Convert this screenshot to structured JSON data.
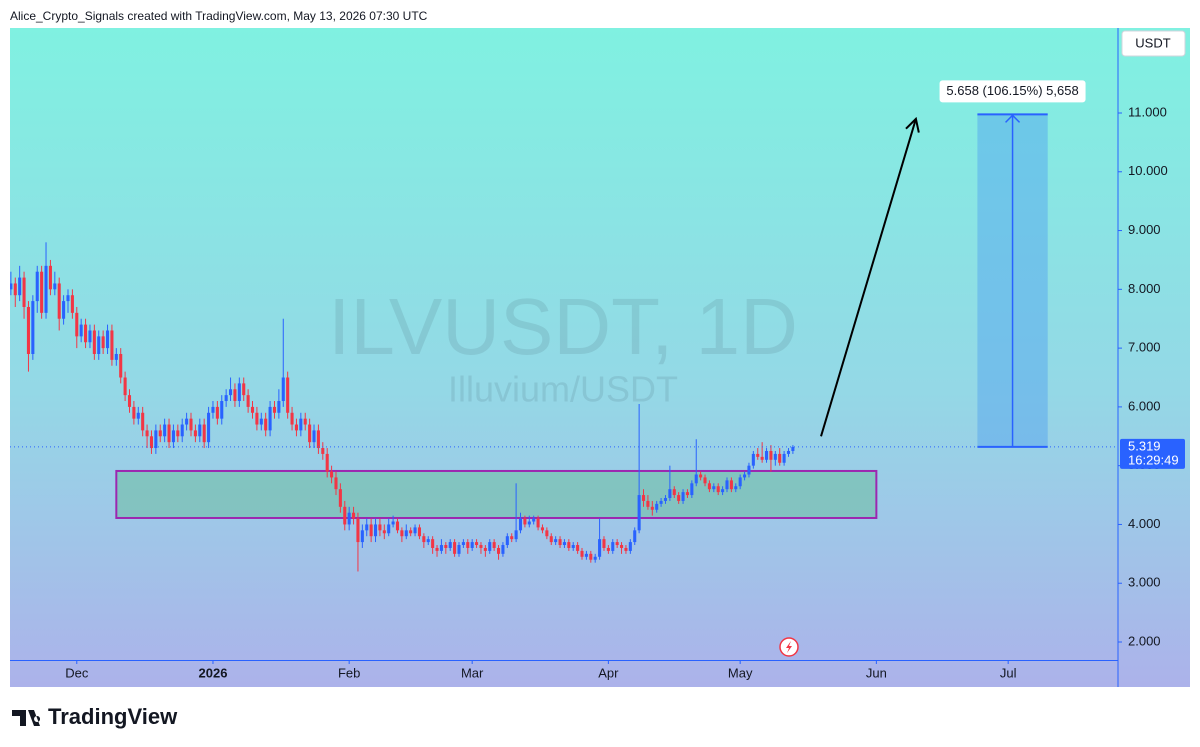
{
  "header": "Alice_Crypto_Signals created with TradingView.com, May 13, 2026 07:30 UTC",
  "footer_logo": "TradingView",
  "chart_data": {
    "type": "candlestick",
    "title": "ILVUSDT, 1D",
    "subtitle": "Illuvium/USDT",
    "currency": "USDT",
    "countdown": "16:29:49",
    "measure_label": "5.658 (106.15%) 5,658",
    "xlim": [
      -0.2,
      252
    ],
    "ylim": [
      1.694,
      12.446
    ],
    "yticks": [
      {
        "value": 2,
        "label": "2.000"
      },
      {
        "value": 3,
        "label": "3.000"
      },
      {
        "value": 4,
        "label": "4.000"
      },
      {
        "value": 5,
        "label": "5.000"
      },
      {
        "value": 6,
        "label": "6.000"
      },
      {
        "value": 7,
        "label": "7.000"
      },
      {
        "value": 8,
        "label": "8.000"
      },
      {
        "value": 9,
        "label": "9.000"
      },
      {
        "value": 10,
        "label": "10.000"
      },
      {
        "value": 11,
        "label": "11.000"
      }
    ],
    "xticks": [
      {
        "value": 15,
        "label": "Dec"
      },
      {
        "value": 46,
        "label": "2026"
      },
      {
        "value": 77,
        "label": "Feb"
      },
      {
        "value": 105,
        "label": "Mar"
      },
      {
        "value": 136,
        "label": "Apr"
      },
      {
        "value": 166,
        "label": "May"
      },
      {
        "value": 197,
        "label": "Jun"
      },
      {
        "value": 227,
        "label": "Jul"
      }
    ],
    "zone": {
      "x": [
        24,
        197
      ],
      "y": [
        4.11,
        4.91
      ]
    },
    "measure": {
      "x": [
        220,
        236
      ],
      "y": [
        5.319,
        10.977
      ]
    },
    "arrow": {
      "x": [
        184.4,
        206
      ],
      "y": [
        5.5,
        10.9
      ]
    },
    "series": [
      {
        "up_color": "#2962ff",
        "down_color": "#f23645",
        "values": [
          [
            8.0,
            8.3,
            7.9,
            8.1
          ],
          [
            8.1,
            8.2,
            7.7,
            7.9
          ],
          [
            7.9,
            8.4,
            7.8,
            8.2
          ],
          [
            8.2,
            8.3,
            7.5,
            7.7
          ],
          [
            7.7,
            7.8,
            6.6,
            6.9
          ],
          [
            6.9,
            7.9,
            6.8,
            7.8
          ],
          [
            7.8,
            8.4,
            7.6,
            8.3
          ],
          [
            8.3,
            8.4,
            7.5,
            7.6
          ],
          [
            7.6,
            8.8,
            7.5,
            8.4
          ],
          [
            8.4,
            8.5,
            7.9,
            8.0
          ],
          [
            8.0,
            8.3,
            7.9,
            8.1
          ],
          [
            8.1,
            8.2,
            7.3,
            7.5
          ],
          [
            7.5,
            7.9,
            7.4,
            7.8
          ],
          [
            7.8,
            8.0,
            7.6,
            7.9
          ],
          [
            7.9,
            8.0,
            7.5,
            7.6
          ],
          [
            7.6,
            7.7,
            7.0,
            7.2
          ],
          [
            7.2,
            7.5,
            7.1,
            7.4
          ],
          [
            7.4,
            7.5,
            7.0,
            7.1
          ],
          [
            7.1,
            7.4,
            7.0,
            7.3
          ],
          [
            7.3,
            7.4,
            6.8,
            6.9
          ],
          [
            6.9,
            7.3,
            6.8,
            7.2
          ],
          [
            7.2,
            7.3,
            6.9,
            7.0
          ],
          [
            7.0,
            7.4,
            6.9,
            7.3
          ],
          [
            7.3,
            7.4,
            6.7,
            6.8
          ],
          [
            6.8,
            7.0,
            6.7,
            6.9
          ],
          [
            6.9,
            7.0,
            6.4,
            6.5
          ],
          [
            6.5,
            6.6,
            6.1,
            6.2
          ],
          [
            6.2,
            6.3,
            5.9,
            6.0
          ],
          [
            6.0,
            6.1,
            5.7,
            5.8
          ],
          [
            5.8,
            6.0,
            5.7,
            5.9
          ],
          [
            5.9,
            6.0,
            5.5,
            5.6
          ],
          [
            5.6,
            5.7,
            5.3,
            5.5
          ],
          [
            5.5,
            5.6,
            5.2,
            5.3
          ],
          [
            5.3,
            5.7,
            5.2,
            5.6
          ],
          [
            5.6,
            5.7,
            5.4,
            5.5
          ],
          [
            5.5,
            5.8,
            5.4,
            5.7
          ],
          [
            5.7,
            5.8,
            5.3,
            5.4
          ],
          [
            5.4,
            5.7,
            5.3,
            5.6
          ],
          [
            5.6,
            5.7,
            5.4,
            5.5
          ],
          [
            5.5,
            5.8,
            5.4,
            5.7
          ],
          [
            5.7,
            5.9,
            5.6,
            5.8
          ],
          [
            5.8,
            5.9,
            5.5,
            5.6
          ],
          [
            5.6,
            5.7,
            5.4,
            5.5
          ],
          [
            5.5,
            5.8,
            5.4,
            5.7
          ],
          [
            5.7,
            5.8,
            5.3,
            5.4
          ],
          [
            5.4,
            6.0,
            5.3,
            5.9
          ],
          [
            5.9,
            6.1,
            5.8,
            6.0
          ],
          [
            6.0,
            6.1,
            5.7,
            5.8
          ],
          [
            5.8,
            6.2,
            5.7,
            6.1
          ],
          [
            6.1,
            6.3,
            6.0,
            6.2
          ],
          [
            6.2,
            6.5,
            6.1,
            6.3
          ],
          [
            6.3,
            6.4,
            6.0,
            6.1
          ],
          [
            6.1,
            6.5,
            6.0,
            6.4
          ],
          [
            6.4,
            6.5,
            6.1,
            6.2
          ],
          [
            6.2,
            6.3,
            5.9,
            6.0
          ],
          [
            6.0,
            6.1,
            5.8,
            5.9
          ],
          [
            5.9,
            6.0,
            5.6,
            5.7
          ],
          [
            5.7,
            5.9,
            5.6,
            5.8
          ],
          [
            5.8,
            5.9,
            5.5,
            5.6
          ],
          [
            5.6,
            6.1,
            5.5,
            6.0
          ],
          [
            6.0,
            6.1,
            5.8,
            5.9
          ],
          [
            5.9,
            6.3,
            5.8,
            6.1
          ],
          [
            6.1,
            7.5,
            6.0,
            6.5
          ],
          [
            6.5,
            6.6,
            5.8,
            5.9
          ],
          [
            5.9,
            6.0,
            5.6,
            5.7
          ],
          [
            5.7,
            5.8,
            5.5,
            5.6
          ],
          [
            5.6,
            5.9,
            5.5,
            5.8
          ],
          [
            5.8,
            5.9,
            5.6,
            5.7
          ],
          [
            5.7,
            5.8,
            5.3,
            5.4
          ],
          [
            5.4,
            5.7,
            5.3,
            5.6
          ],
          [
            5.6,
            5.7,
            5.2,
            5.3
          ],
          [
            5.3,
            5.4,
            5.1,
            5.2
          ],
          [
            5.2,
            5.3,
            4.8,
            4.9
          ],
          [
            4.9,
            5.0,
            4.7,
            4.8
          ],
          [
            4.8,
            4.9,
            4.5,
            4.6
          ],
          [
            4.6,
            4.7,
            4.2,
            4.3
          ],
          [
            4.3,
            4.4,
            3.9,
            4.0
          ],
          [
            4.0,
            4.3,
            3.9,
            4.2
          ],
          [
            4.2,
            4.3,
            4.0,
            4.1
          ],
          [
            4.1,
            4.2,
            3.2,
            3.7
          ],
          [
            3.7,
            4.0,
            3.6,
            3.9
          ],
          [
            3.9,
            4.1,
            3.8,
            4.0
          ],
          [
            4.0,
            4.1,
            3.7,
            3.8
          ],
          [
            3.8,
            4.1,
            3.7,
            4.0
          ],
          [
            4.0,
            4.1,
            3.8,
            3.9
          ],
          [
            3.9,
            4.0,
            3.75,
            3.85
          ],
          [
            3.85,
            4.1,
            3.8,
            4.0
          ],
          [
            4.0,
            4.15,
            3.95,
            4.05
          ],
          [
            4.05,
            4.1,
            3.85,
            3.9
          ],
          [
            3.9,
            3.95,
            3.7,
            3.8
          ],
          [
            3.8,
            4.0,
            3.75,
            3.9
          ],
          [
            3.9,
            3.95,
            3.8,
            3.85
          ],
          [
            3.85,
            4.0,
            3.8,
            3.95
          ],
          [
            3.95,
            4.0,
            3.75,
            3.8
          ],
          [
            3.8,
            3.85,
            3.6,
            3.7
          ],
          [
            3.7,
            3.8,
            3.65,
            3.75
          ],
          [
            3.75,
            3.8,
            3.5,
            3.6
          ],
          [
            3.6,
            3.65,
            3.45,
            3.55
          ],
          [
            3.55,
            3.75,
            3.5,
            3.65
          ],
          [
            3.65,
            3.7,
            3.5,
            3.6
          ],
          [
            3.6,
            3.75,
            3.55,
            3.7
          ],
          [
            3.7,
            3.75,
            3.45,
            3.5
          ],
          [
            3.5,
            3.7,
            3.45,
            3.65
          ],
          [
            3.65,
            3.75,
            3.6,
            3.7
          ],
          [
            3.7,
            3.75,
            3.5,
            3.6
          ],
          [
            3.6,
            3.75,
            3.55,
            3.7
          ],
          [
            3.7,
            3.75,
            3.6,
            3.65
          ],
          [
            3.65,
            3.7,
            3.5,
            3.6
          ],
          [
            3.6,
            3.65,
            3.45,
            3.55
          ],
          [
            3.55,
            3.75,
            3.5,
            3.7
          ],
          [
            3.7,
            3.75,
            3.55,
            3.6
          ],
          [
            3.6,
            3.65,
            3.4,
            3.5
          ],
          [
            3.5,
            3.7,
            3.45,
            3.65
          ],
          [
            3.65,
            3.85,
            3.6,
            3.8
          ],
          [
            3.8,
            3.85,
            3.7,
            3.75
          ],
          [
            3.75,
            4.7,
            3.7,
            3.9
          ],
          [
            3.9,
            4.2,
            3.85,
            4.1
          ],
          [
            4.1,
            4.15,
            3.95,
            4.0
          ],
          [
            4.0,
            4.15,
            3.95,
            4.05
          ],
          [
            4.05,
            4.15,
            4.0,
            4.1
          ],
          [
            4.1,
            4.15,
            3.9,
            3.95
          ],
          [
            3.95,
            4.0,
            3.85,
            3.9
          ],
          [
            3.9,
            3.95,
            3.75,
            3.8
          ],
          [
            3.8,
            3.85,
            3.65,
            3.7
          ],
          [
            3.7,
            3.8,
            3.65,
            3.75
          ],
          [
            3.75,
            3.8,
            3.6,
            3.65
          ],
          [
            3.65,
            3.75,
            3.6,
            3.7
          ],
          [
            3.7,
            3.75,
            3.55,
            3.6
          ],
          [
            3.6,
            3.7,
            3.55,
            3.65
          ],
          [
            3.65,
            3.7,
            3.5,
            3.55
          ],
          [
            3.55,
            3.6,
            3.4,
            3.45
          ],
          [
            3.45,
            3.55,
            3.4,
            3.5
          ],
          [
            3.5,
            3.55,
            3.35,
            3.4
          ],
          [
            3.4,
            3.5,
            3.35,
            3.45
          ],
          [
            3.45,
            4.1,
            3.4,
            3.75
          ],
          [
            3.75,
            3.8,
            3.55,
            3.6
          ],
          [
            3.6,
            3.65,
            3.5,
            3.55
          ],
          [
            3.55,
            3.75,
            3.5,
            3.7
          ],
          [
            3.7,
            3.75,
            3.6,
            3.65
          ],
          [
            3.65,
            3.7,
            3.5,
            3.6
          ],
          [
            3.6,
            3.65,
            3.5,
            3.55
          ],
          [
            3.55,
            3.75,
            3.5,
            3.7
          ],
          [
            3.7,
            3.95,
            3.65,
            3.9
          ],
          [
            3.9,
            6.05,
            3.85,
            4.5
          ],
          [
            4.5,
            4.6,
            4.3,
            4.4
          ],
          [
            4.4,
            4.5,
            4.25,
            4.3
          ],
          [
            4.3,
            4.4,
            4.15,
            4.25
          ],
          [
            4.25,
            4.4,
            4.2,
            4.35
          ],
          [
            4.35,
            4.45,
            4.3,
            4.4
          ],
          [
            4.4,
            4.5,
            4.35,
            4.45
          ],
          [
            4.45,
            5.0,
            4.4,
            4.6
          ],
          [
            4.6,
            4.65,
            4.45,
            4.5
          ],
          [
            4.5,
            4.55,
            4.35,
            4.4
          ],
          [
            4.4,
            4.6,
            4.35,
            4.55
          ],
          [
            4.55,
            4.6,
            4.45,
            4.5
          ],
          [
            4.5,
            4.75,
            4.45,
            4.7
          ],
          [
            4.7,
            5.45,
            4.65,
            4.85
          ],
          [
            4.85,
            4.9,
            4.75,
            4.8
          ],
          [
            4.8,
            4.85,
            4.65,
            4.7
          ],
          [
            4.7,
            4.75,
            4.55,
            4.6
          ],
          [
            4.6,
            4.7,
            4.55,
            4.65
          ],
          [
            4.65,
            4.7,
            4.5,
            4.55
          ],
          [
            4.55,
            4.65,
            4.5,
            4.6
          ],
          [
            4.6,
            4.8,
            4.55,
            4.75
          ],
          [
            4.75,
            4.8,
            4.55,
            4.6
          ],
          [
            4.6,
            4.7,
            4.55,
            4.65
          ],
          [
            4.65,
            4.85,
            4.6,
            4.8
          ],
          [
            4.8,
            4.9,
            4.75,
            4.85
          ],
          [
            4.85,
            5.05,
            4.8,
            5.0
          ],
          [
            5.0,
            5.25,
            4.95,
            5.2
          ],
          [
            5.2,
            5.3,
            5.1,
            5.15
          ],
          [
            5.15,
            5.4,
            5.05,
            5.1
          ],
          [
            5.1,
            5.3,
            5.05,
            5.25
          ],
          [
            5.25,
            5.35,
            4.9,
            5.1
          ],
          [
            5.1,
            5.25,
            5.0,
            5.2
          ],
          [
            5.2,
            5.3,
            5.0,
            5.05
          ],
          [
            5.05,
            5.25,
            5.0,
            5.2
          ],
          [
            5.2,
            5.3,
            5.15,
            5.25
          ],
          [
            5.25,
            5.35,
            5.2,
            5.319
          ]
        ]
      }
    ]
  }
}
